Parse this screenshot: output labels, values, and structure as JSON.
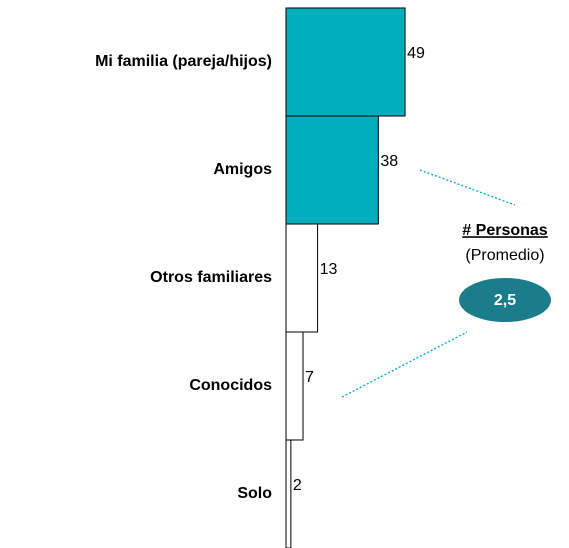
{
  "chart_data": {
    "type": "hbar",
    "categories": [
      "Mi familia (pareja/hijos)",
      "Amigos",
      "Otros familiares",
      "Conocidos",
      "Solo"
    ],
    "values": [
      49,
      38,
      13,
      7,
      2
    ],
    "colors": [
      "#00aebd",
      "#00aebd",
      "#ffffff",
      "#ffffff",
      "#ffffff"
    ],
    "annotation": {
      "title": "# Personas",
      "subtitle": "(Promedio)",
      "value": 2.5,
      "value_label": "2,5",
      "color": "#1b7d8c"
    }
  }
}
